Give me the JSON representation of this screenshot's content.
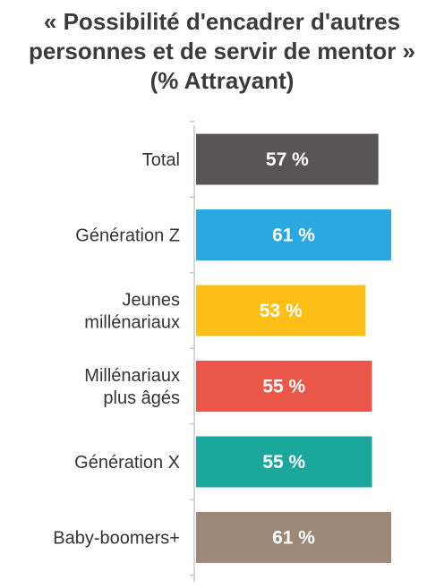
{
  "chart_data": {
    "type": "bar",
    "orientation": "horizontal",
    "title_lines": [
      "« Possibilité d'encadrer d'autres",
      "personnes et de servir de mentor »",
      "(% Attrayant)"
    ],
    "categories": [
      [
        "Total"
      ],
      [
        "Génération Z"
      ],
      [
        "Jeunes",
        "millénariaux"
      ],
      [
        "Millénariaux",
        "plus âgés"
      ],
      [
        "Génération X"
      ],
      [
        "Baby-boomers+"
      ]
    ],
    "values": [
      57,
      61,
      53,
      55,
      55,
      61
    ],
    "value_labels": [
      "57 %",
      "61 %",
      "53 %",
      "55 %",
      "55 %",
      "61 %"
    ],
    "colors": [
      "#595556",
      "#2aa8e0",
      "#fdbf17",
      "#ea5647",
      "#1aa89c",
      "#9c8778"
    ],
    "xlim": [
      0,
      61
    ],
    "grid": false,
    "legend": "none"
  }
}
